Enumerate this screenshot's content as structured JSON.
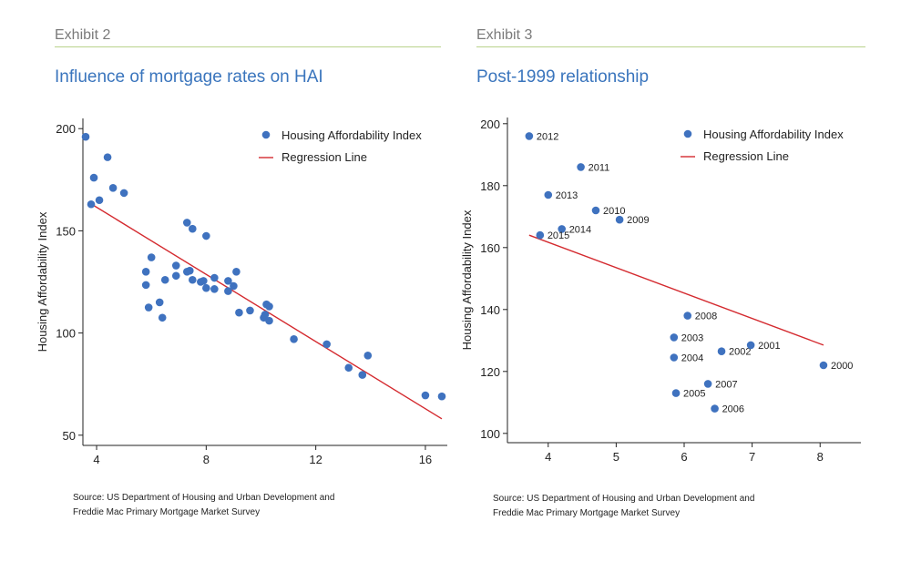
{
  "colors": {
    "marker": "#3f72bf",
    "regression": "#d42a2f",
    "title": "#3a75bd",
    "rule": "#b9d28c",
    "axis": "#222222"
  },
  "charts": [
    {
      "exhibit_label": "Exhibit 2",
      "title": "Influence of mortgage rates on HAI",
      "source_line1": "Source: US Department of Housing and Urban Development and",
      "source_line2": "Freddie Mac Primary Mortgage Market Survey"
    },
    {
      "exhibit_label": "Exhibit 3",
      "title": "Post-1999 relationship",
      "source_line1": "Source: US Department of Housing and Urban Development and",
      "source_line2": "Freddie Mac Primary Mortgage Market Survey"
    }
  ],
  "chart_data": [
    {
      "type": "scatter",
      "title": "Influence of mortgage rates on HAI",
      "xlabel": "",
      "ylabel": "Housing Affordability Index",
      "xlim": [
        3.5,
        16.8
      ],
      "ylim": [
        45,
        205
      ],
      "xticks": [
        4,
        8,
        12,
        16
      ],
      "yticks": [
        50,
        100,
        150,
        200
      ],
      "legend_position": "top-right",
      "legend": [
        "Housing Affordability Index",
        "Regression Line"
      ],
      "series": [
        {
          "name": "Housing Affordability Index",
          "points": [
            [
              3.6,
              196
            ],
            [
              3.8,
              163
            ],
            [
              3.9,
              176
            ],
            [
              4.1,
              165
            ],
            [
              4.4,
              186
            ],
            [
              4.6,
              171
            ],
            [
              5.0,
              168.5
            ],
            [
              5.8,
              130
            ],
            [
              5.8,
              123.5
            ],
            [
              5.9,
              112.5
            ],
            [
              6.0,
              137
            ],
            [
              6.3,
              115
            ],
            [
              6.4,
              107.5
            ],
            [
              6.5,
              126
            ],
            [
              6.9,
              133
            ],
            [
              6.9,
              128
            ],
            [
              7.3,
              130
            ],
            [
              7.3,
              154
            ],
            [
              7.4,
              130.5
            ],
            [
              7.5,
              151
            ],
            [
              7.5,
              126
            ],
            [
              7.8,
              125
            ],
            [
              7.9,
              125.5
            ],
            [
              8.0,
              122
            ],
            [
              8.0,
              147.5
            ],
            [
              8.3,
              127
            ],
            [
              8.3,
              121.5
            ],
            [
              8.8,
              120.5
            ],
            [
              8.8,
              125.5
            ],
            [
              9.0,
              123
            ],
            [
              9.1,
              130
            ],
            [
              9.2,
              110
            ],
            [
              9.6,
              111
            ],
            [
              10.1,
              107.5
            ],
            [
              10.15,
              109
            ],
            [
              10.2,
              114
            ],
            [
              10.3,
              113
            ],
            [
              10.3,
              106
            ],
            [
              11.2,
              97
            ],
            [
              12.4,
              94.5
            ],
            [
              13.2,
              83
            ],
            [
              13.7,
              79.5
            ],
            [
              13.9,
              89
            ],
            [
              16.0,
              69.5
            ],
            [
              16.6,
              69
            ]
          ]
        }
      ],
      "regression_line": {
        "name": "Regression Line",
        "x": [
          3.7,
          16.6
        ],
        "y": [
          164,
          58
        ]
      }
    },
    {
      "type": "scatter",
      "title": "Post-1999 relationship",
      "xlabel": "",
      "ylabel": "Housing Affordability Index",
      "xlim": [
        3.4,
        8.6
      ],
      "ylim": [
        97,
        202
      ],
      "xticks": [
        4,
        5,
        6,
        7,
        8
      ],
      "yticks": [
        100,
        120,
        140,
        160,
        180,
        200
      ],
      "legend_position": "top-right",
      "legend": [
        "Housing Affordability Index",
        "Regression Line"
      ],
      "series": [
        {
          "name": "Housing Affordability Index",
          "points": [
            {
              "label": "2012",
              "x": 3.72,
              "y": 196
            },
            {
              "label": "2011",
              "x": 4.48,
              "y": 186
            },
            {
              "label": "2013",
              "x": 4.0,
              "y": 177
            },
            {
              "label": "2010",
              "x": 4.7,
              "y": 172
            },
            {
              "label": "2009",
              "x": 5.05,
              "y": 169
            },
            {
              "label": "2014",
              "x": 4.2,
              "y": 166
            },
            {
              "label": "2015",
              "x": 3.88,
              "y": 164
            },
            {
              "label": "2008",
              "x": 6.05,
              "y": 138
            },
            {
              "label": "2003",
              "x": 5.85,
              "y": 131
            },
            {
              "label": "2002",
              "x": 6.55,
              "y": 126.5
            },
            {
              "label": "2001",
              "x": 6.98,
              "y": 128.5
            },
            {
              "label": "2004",
              "x": 5.85,
              "y": 124.5
            },
            {
              "label": "2000",
              "x": 8.05,
              "y": 122
            },
            {
              "label": "2007",
              "x": 6.35,
              "y": 116
            },
            {
              "label": "2005",
              "x": 5.88,
              "y": 113
            },
            {
              "label": "2006",
              "x": 6.45,
              "y": 108
            }
          ]
        }
      ],
      "regression_line": {
        "name": "Regression Line",
        "x": [
          3.72,
          8.05
        ],
        "y": [
          164,
          128.5
        ]
      }
    }
  ]
}
